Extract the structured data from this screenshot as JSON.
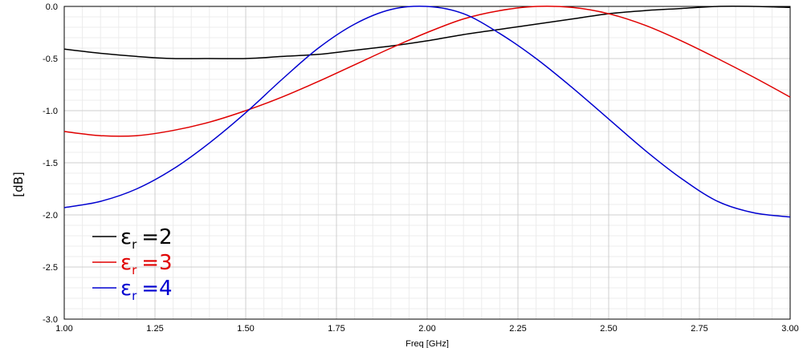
{
  "chart_data": {
    "type": "line",
    "xlabel": "Freq [GHz]",
    "ylabel": "[dB]",
    "xlim": [
      1.0,
      3.0
    ],
    "ylim": [
      -3.0,
      0.0
    ],
    "xticks": [
      1.0,
      1.25,
      1.5,
      1.75,
      2.0,
      2.25,
      2.5,
      2.75,
      3.0
    ],
    "xtick_labels": [
      "1.00",
      "1.25",
      "1.50",
      "1.75",
      "2.00",
      "2.25",
      "2.50",
      "2.75",
      "3.00"
    ],
    "yticks": [
      0.0,
      -0.5,
      -1.0,
      -1.5,
      -2.0,
      -2.5,
      -3.0
    ],
    "ytick_labels": [
      "0.0",
      "-0.5",
      "-1.0",
      "-1.5",
      "-2.0",
      "-2.5",
      "-3.0"
    ],
    "grid": true,
    "minor_grid": true,
    "legend_position": "bottom-left",
    "series": [
      {
        "name": "ε_r =2",
        "label_main": "ε",
        "label_sub": "r",
        "label_value": "=2",
        "color": "#000000",
        "x": [
          1.0,
          1.1,
          1.2,
          1.3,
          1.4,
          1.5,
          1.6,
          1.7,
          1.8,
          1.9,
          2.0,
          2.1,
          2.2,
          2.3,
          2.4,
          2.5,
          2.6,
          2.7,
          2.8,
          2.9,
          3.0
        ],
        "y": [
          -0.41,
          -0.45,
          -0.48,
          -0.5,
          -0.5,
          -0.5,
          -0.48,
          -0.46,
          -0.42,
          -0.38,
          -0.33,
          -0.27,
          -0.22,
          -0.17,
          -0.12,
          -0.07,
          -0.04,
          -0.02,
          -0.0,
          -0.0,
          -0.01
        ]
      },
      {
        "name": "ε_r =3",
        "label_main": "ε",
        "label_sub": "r",
        "label_value": "=3",
        "color": "#e00000",
        "x": [
          1.0,
          1.1,
          1.2,
          1.3,
          1.4,
          1.5,
          1.6,
          1.7,
          1.8,
          1.9,
          2.0,
          2.1,
          2.2,
          2.3,
          2.4,
          2.5,
          2.6,
          2.7,
          2.8,
          2.9,
          3.0
        ],
        "y": [
          -1.2,
          -1.24,
          -1.24,
          -1.19,
          -1.11,
          -1.0,
          -0.87,
          -0.72,
          -0.56,
          -0.4,
          -0.25,
          -0.12,
          -0.04,
          0.0,
          -0.01,
          -0.07,
          -0.18,
          -0.33,
          -0.5,
          -0.68,
          -0.87
        ]
      },
      {
        "name": "ε_r =4",
        "label_main": "ε",
        "label_sub": "r",
        "label_value": "=4",
        "color": "#0000d0",
        "x": [
          1.0,
          1.1,
          1.2,
          1.3,
          1.4,
          1.5,
          1.6,
          1.7,
          1.8,
          1.9,
          2.0,
          2.1,
          2.2,
          2.3,
          2.4,
          2.5,
          2.6,
          2.7,
          2.8,
          2.9,
          3.0
        ],
        "y": [
          -1.93,
          -1.87,
          -1.75,
          -1.56,
          -1.31,
          -1.02,
          -0.7,
          -0.4,
          -0.17,
          -0.03,
          0.0,
          -0.07,
          -0.26,
          -0.5,
          -0.78,
          -1.08,
          -1.38,
          -1.65,
          -1.87,
          -1.98,
          -2.02
        ]
      }
    ]
  }
}
